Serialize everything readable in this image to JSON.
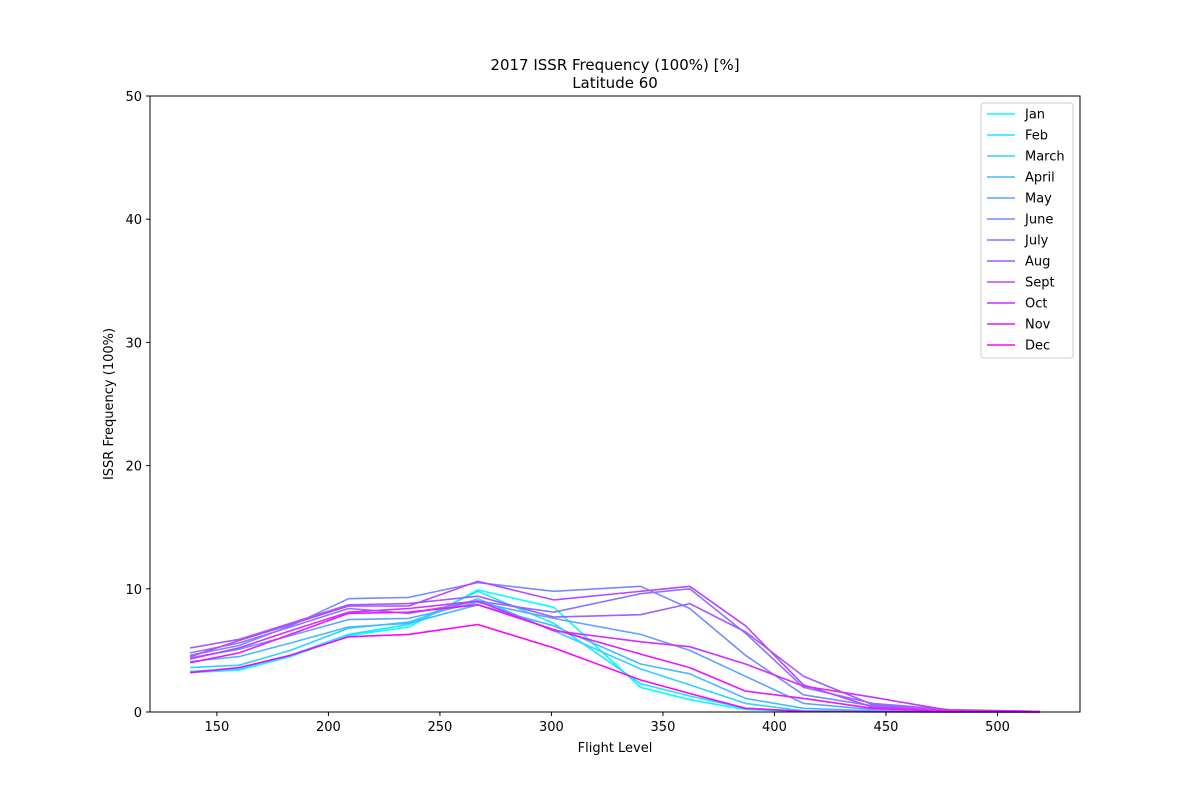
{
  "chart_data": {
    "type": "line",
    "title": "2017 ISSR Frequency (100%) [%]",
    "subtitle": "Latitude 60",
    "xlabel": "Flight Level",
    "ylabel": "ISSR Frequency (100%)",
    "xlim": [
      120,
      537
    ],
    "ylim": [
      0,
      50
    ],
    "xticks": [
      150,
      200,
      250,
      300,
      350,
      400,
      450,
      500
    ],
    "yticks": [
      0,
      10,
      20,
      30,
      40,
      50
    ],
    "grid": false,
    "legend": "top-right",
    "x": [
      138,
      160,
      183,
      209,
      236,
      267,
      301,
      340,
      362,
      387,
      413,
      444,
      478,
      519
    ],
    "series": [
      {
        "name": "Jan",
        "color": "#00ffff",
        "values": [
          3.2,
          3.4,
          4.5,
          6.2,
          6.9,
          9.9,
          8.5,
          2.0,
          1.0,
          0.2,
          0.05,
          0.02,
          0.01,
          0.0
        ]
      },
      {
        "name": "Feb",
        "color": "#17e8ff",
        "values": [
          3.3,
          3.5,
          4.6,
          6.3,
          7.1,
          9.8,
          7.2,
          2.3,
          1.3,
          0.3,
          0.08,
          0.03,
          0.01,
          0.0
        ]
      },
      {
        "name": "March",
        "color": "#2ed1ff",
        "values": [
          3.6,
          3.8,
          5.0,
          6.8,
          7.3,
          9.2,
          6.6,
          3.5,
          2.2,
          0.7,
          0.1,
          0.05,
          0.01,
          0.0
        ]
      },
      {
        "name": "April",
        "color": "#45baff",
        "values": [
          4.1,
          4.5,
          5.6,
          6.9,
          7.2,
          8.7,
          7.0,
          3.9,
          3.1,
          1.1,
          0.3,
          0.1,
          0.02,
          0.0
        ]
      },
      {
        "name": "May",
        "color": "#5ca3ff",
        "values": [
          4.4,
          5.1,
          6.2,
          7.5,
          7.6,
          8.9,
          7.6,
          6.3,
          5.0,
          2.9,
          0.7,
          0.2,
          0.05,
          0.01
        ]
      },
      {
        "name": "June",
        "color": "#738cff",
        "values": [
          4.6,
          5.4,
          7.0,
          9.2,
          9.3,
          10.5,
          9.8,
          10.2,
          8.4,
          4.6,
          1.4,
          0.5,
          0.1,
          0.02
        ]
      },
      {
        "name": "July",
        "color": "#8b74ff",
        "values": [
          4.8,
          5.6,
          6.9,
          8.4,
          8.0,
          9.0,
          8.1,
          9.6,
          10.0,
          6.4,
          2.0,
          0.7,
          0.2,
          0.05
        ]
      },
      {
        "name": "Aug",
        "color": "#a25dff",
        "values": [
          5.2,
          5.9,
          7.2,
          8.7,
          8.8,
          9.4,
          7.7,
          7.9,
          8.8,
          6.5,
          2.9,
          0.6,
          0.1,
          0.02
        ]
      },
      {
        "name": "Sept",
        "color": "#b946ff",
        "values": [
          4.5,
          5.8,
          7.1,
          8.6,
          8.6,
          10.6,
          9.1,
          9.8,
          10.2,
          7.0,
          2.2,
          0.4,
          0.1,
          0.02
        ]
      },
      {
        "name": "Oct",
        "color": "#d02fff",
        "values": [
          4.3,
          5.2,
          6.6,
          8.1,
          8.4,
          9.0,
          6.6,
          5.7,
          5.3,
          3.9,
          2.1,
          1.2,
          0.15,
          0.05
        ]
      },
      {
        "name": "Nov",
        "color": "#e717ff",
        "values": [
          4.0,
          4.8,
          6.3,
          8.0,
          8.1,
          8.7,
          6.7,
          4.7,
          3.6,
          1.7,
          1.1,
          0.3,
          0.05,
          0.01
        ]
      },
      {
        "name": "Dec",
        "color": "#ff00ff",
        "values": [
          3.2,
          3.6,
          4.6,
          6.1,
          6.3,
          7.1,
          5.2,
          2.6,
          1.5,
          0.3,
          0.05,
          0.02,
          0.01,
          0.0
        ]
      }
    ]
  }
}
